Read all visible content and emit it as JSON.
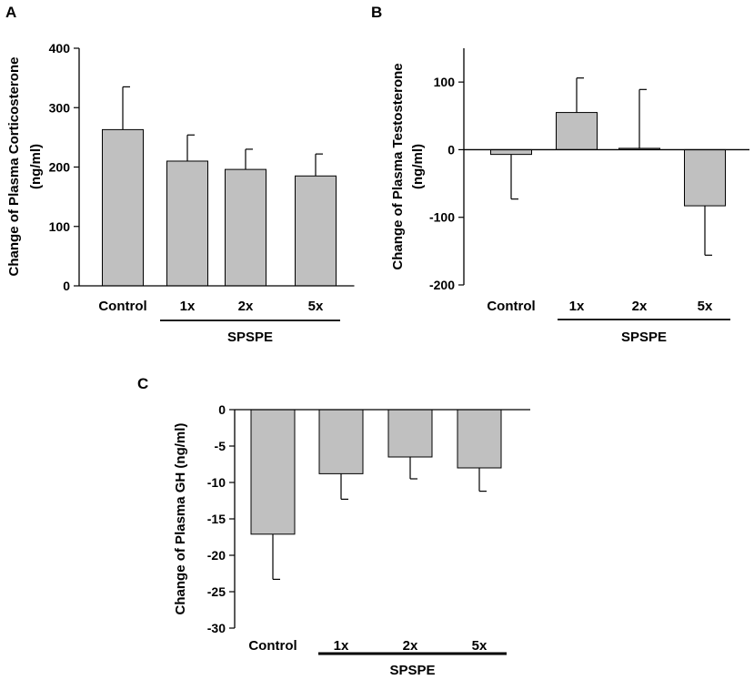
{
  "chart_data": [
    {
      "panel": "A",
      "type": "bar",
      "categories": [
        "Control",
        "1x",
        "2x",
        "5x"
      ],
      "values": [
        263,
        210,
        196,
        185
      ],
      "errors": [
        72,
        44,
        34,
        37
      ],
      "ylabel": [
        "Change of Plasma Corticosterone",
        "(ng/ml)"
      ],
      "ylim": [
        0,
        400
      ],
      "yticks": [
        0,
        100,
        200,
        300,
        400
      ],
      "group_label": "SPSPE",
      "bar_color": "#c0c0c0"
    },
    {
      "panel": "B",
      "type": "bar",
      "categories": [
        "Control",
        "1x",
        "2x",
        "5x"
      ],
      "values": [
        -7,
        55,
        2,
        -83
      ],
      "errors": [
        66,
        51,
        87,
        73
      ],
      "ylabel": [
        "Change of Plasma Testosterone",
        "(ng/ml)"
      ],
      "ylim": [
        -200,
        150
      ],
      "yticks": [
        -200,
        -100,
        0,
        100
      ],
      "group_label": "SPSPE",
      "bar_color": "#c0c0c0"
    },
    {
      "panel": "C",
      "type": "bar",
      "categories": [
        "Control",
        "1x",
        "2x",
        "5x"
      ],
      "values": [
        -17.1,
        -8.8,
        -6.5,
        -8.0
      ],
      "errors": [
        6.2,
        3.5,
        3.0,
        3.2
      ],
      "ylabel": [
        "Change of Plasma GH (ng/ml)"
      ],
      "ylim": [
        -30,
        0
      ],
      "yticks": [
        -30,
        -25,
        -20,
        -15,
        -10,
        -5,
        0
      ],
      "group_label": "SPSPE",
      "bar_color": "#c0c0c0"
    }
  ]
}
